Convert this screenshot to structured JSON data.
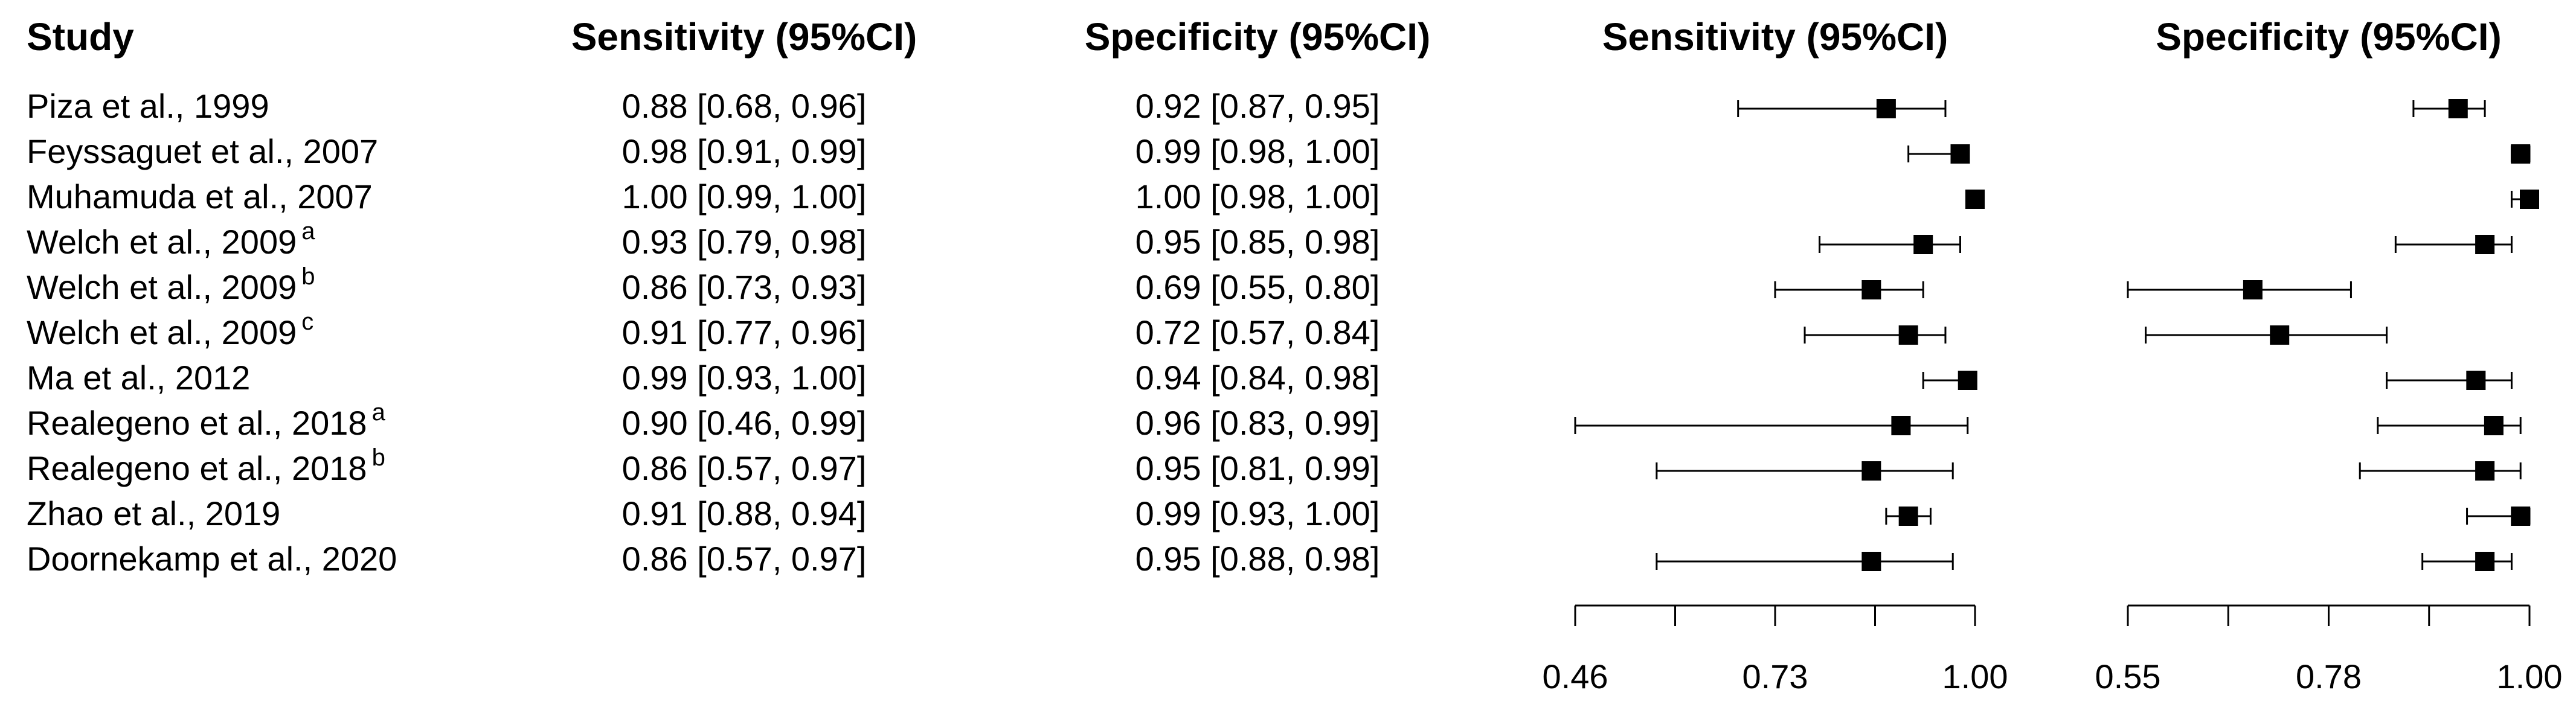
{
  "table": {
    "study_header": "Study",
    "rows": [
      {
        "study": "Piza et al., 1999"
      },
      {
        "study": "Feyssaguet et al., 2007"
      },
      {
        "study": "Muhamuda et al., 2007"
      },
      {
        "study": "Welch et al., 2009",
        "note": "a"
      },
      {
        "study": "Welch et al., 2009",
        "note": "b"
      },
      {
        "study": "Welch et al., 2009",
        "note": "c"
      },
      {
        "study": "Ma et al., 2012"
      },
      {
        "study": "Realegeno et al., 2018",
        "note": "a"
      },
      {
        "study": "Realegeno et al., 2018",
        "note": "b"
      },
      {
        "study": "Zhao et al., 2019"
      },
      {
        "study": "Doornekamp et al., 2020"
      }
    ],
    "column_headers": [
      "Sensitivity (95%CI)",
      "Specificity (95%CI)"
    ]
  },
  "chart_data": [
    {
      "type": "forest",
      "title": "Sensitivity (95%CI)",
      "color": "#000000",
      "estimate": [
        0.88,
        0.98,
        1.0,
        0.93,
        0.86,
        0.91,
        0.99,
        0.9,
        0.86,
        0.91,
        0.86
      ],
      "lower": [
        0.68,
        0.91,
        0.99,
        0.79,
        0.73,
        0.77,
        0.93,
        0.46,
        0.57,
        0.88,
        0.57
      ],
      "upper": [
        0.96,
        0.99,
        1.0,
        0.98,
        0.93,
        0.96,
        1.0,
        0.99,
        0.97,
        0.94,
        0.97
      ],
      "value_labels": [
        "0.88 [0.68, 0.96]",
        "0.98 [0.91, 0.99]",
        "1.00 [0.99, 1.00]",
        "0.93 [0.79, 0.98]",
        "0.86 [0.73, 0.93]",
        "0.91 [0.77, 0.96]",
        "0.99 [0.93, 1.00]",
        "0.90 [0.46, 0.99]",
        "0.86 [0.57, 0.97]",
        "0.91 [0.88, 0.94]",
        "0.86 [0.57, 0.97]"
      ],
      "xlim": [
        0.46,
        1.0
      ],
      "xticks": [
        0.46,
        0.73,
        {
          "value": 1.0,
          "label": "1.00"
        }
      ],
      "minor_xticks": [
        0.595,
        0.865
      ]
    },
    {
      "type": "forest",
      "title": "Specificity (95%CI)",
      "color": "#000000",
      "estimate": [
        0.92,
        0.99,
        1.0,
        0.95,
        0.69,
        0.72,
        0.94,
        0.96,
        0.95,
        0.99,
        0.95
      ],
      "lower": [
        0.87,
        0.98,
        0.98,
        0.85,
        0.55,
        0.57,
        0.84,
        0.83,
        0.81,
        0.93,
        0.88
      ],
      "upper": [
        0.95,
        1.0,
        1.0,
        0.98,
        0.8,
        0.84,
        0.98,
        0.99,
        0.99,
        1.0,
        0.98
      ],
      "value_labels": [
        "0.92 [0.87, 0.95]",
        "0.99 [0.98, 1.00]",
        "1.00 [0.98, 1.00]",
        "0.95 [0.85, 0.98]",
        "0.69 [0.55, 0.80]",
        "0.72 [0.57, 0.84]",
        "0.94 [0.84, 0.98]",
        "0.96 [0.83, 0.99]",
        "0.95 [0.81, 0.99]",
        "0.99 [0.93, 1.00]",
        "0.95 [0.88, 0.98]"
      ],
      "xlim": [
        0.55,
        1.0
      ],
      "xticks": [
        0.55,
        {
          "value": 0.775,
          "label": "0.78"
        },
        {
          "value": 1.0,
          "label": "1.00"
        }
      ],
      "minor_xticks": [
        0.6625,
        0.8875
      ]
    }
  ]
}
